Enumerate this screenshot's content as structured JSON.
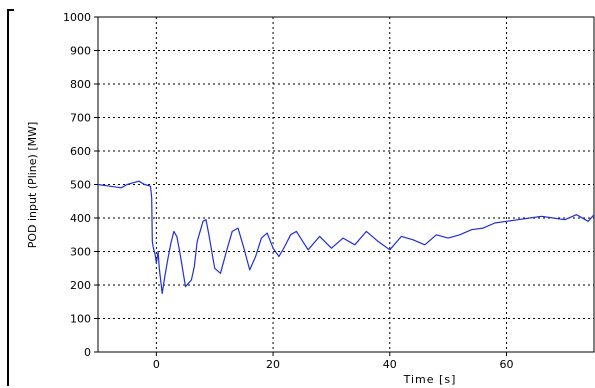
{
  "chart_data": {
    "type": "line",
    "title": "",
    "xlabel": "Time [s]",
    "ylabel": "POD input (Pline) [MW]",
    "xlim": [
      -10,
      75
    ],
    "ylim": [
      0,
      1000
    ],
    "grid": true,
    "xticks": [
      0,
      20,
      40,
      60
    ],
    "yticks": [
      0,
      100,
      200,
      300,
      400,
      500,
      600,
      700,
      800,
      900,
      1000
    ],
    "series_color": "#1f2fdc",
    "series": [
      {
        "x": [
          -10,
          -8,
          -6,
          -5,
          -4,
          -3,
          -2,
          -1,
          -0.8,
          -0.7,
          -0.5,
          -0.2,
          0,
          0.3,
          0.5,
          1,
          1.5,
          2,
          2.5,
          3,
          3.5,
          4,
          5,
          6,
          6.5,
          7,
          8,
          8.5,
          9,
          10,
          11,
          12,
          13,
          14,
          15,
          16,
          17,
          18,
          19,
          20,
          21,
          22,
          23,
          24,
          26,
          28,
          30,
          32,
          34,
          36,
          38,
          40,
          42,
          44,
          46,
          48,
          50,
          52,
          54,
          56,
          58,
          60,
          62,
          64,
          66,
          68,
          70,
          72,
          74,
          75
        ],
        "values": [
          500,
          495,
          490,
          500,
          505,
          510,
          500,
          495,
          460,
          330,
          310,
          290,
          265,
          300,
          250,
          175,
          230,
          280,
          325,
          360,
          345,
          300,
          195,
          215,
          255,
          330,
          390,
          395,
          350,
          250,
          235,
          300,
          360,
          370,
          310,
          245,
          285,
          340,
          355,
          310,
          285,
          315,
          350,
          360,
          305,
          345,
          310,
          340,
          320,
          360,
          330,
          305,
          345,
          335,
          320,
          350,
          340,
          350,
          365,
          370,
          385,
          390,
          395,
          400,
          405,
          400,
          395,
          410,
          390,
          410
        ]
      }
    ]
  }
}
